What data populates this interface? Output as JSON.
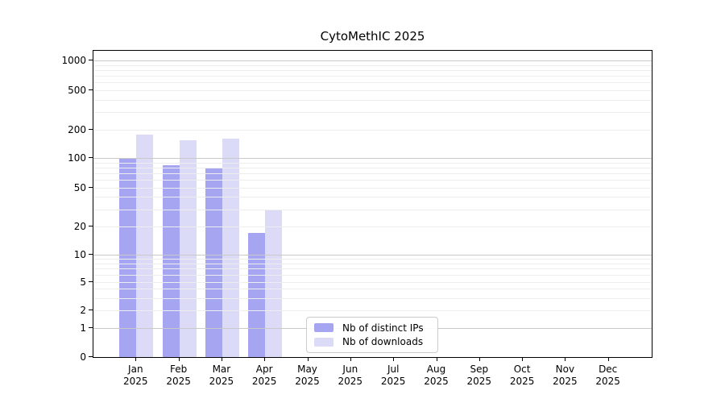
{
  "chart_data": {
    "type": "bar",
    "title": "CytoMethIC 2025",
    "x_tick_year": "2025",
    "categories": [
      "Jan",
      "Feb",
      "Mar",
      "Apr",
      "May",
      "Jun",
      "Jul",
      "Aug",
      "Sep",
      "Oct",
      "Nov",
      "Dec"
    ],
    "series": [
      {
        "name": "Nb of distinct IPs",
        "color": "#a5a5f2",
        "values": [
          100,
          85,
          80,
          17,
          0,
          0,
          0,
          0,
          0,
          0,
          0,
          0
        ]
      },
      {
        "name": "Nb of downloads",
        "color": "#dbdbf8",
        "values": [
          175,
          155,
          160,
          29,
          0,
          0,
          0,
          0,
          0,
          0,
          0,
          0
        ]
      }
    ],
    "y_axis": {
      "scale": "symlog",
      "ticks": [
        0,
        1,
        2,
        5,
        10,
        20,
        50,
        100,
        200,
        500,
        1000
      ],
      "anchors": [
        [
          0,
          0
        ],
        [
          1,
          0.0942
        ],
        [
          2,
          0.1518
        ],
        [
          5,
          0.2461
        ],
        [
          10,
          0.3351
        ],
        [
          20,
          0.4267
        ],
        [
          50,
          0.5536
        ],
        [
          100,
          0.6492
        ],
        [
          200,
          0.7435
        ],
        [
          500,
          0.8717
        ],
        [
          1000,
          0.9686
        ]
      ],
      "major_gridlines": [
        1,
        10,
        100,
        1000
      ],
      "minor_gridlines": [
        2,
        3,
        4,
        5,
        6,
        7,
        8,
        9,
        20,
        30,
        40,
        50,
        60,
        70,
        80,
        90,
        200,
        300,
        400,
        500,
        600,
        700,
        800,
        900
      ]
    },
    "legend_position": "lower center",
    "grid": true,
    "colors": {
      "major_grid": "#c9c9c9",
      "minor_grid": "#ededed",
      "spine": "#000000"
    }
  }
}
